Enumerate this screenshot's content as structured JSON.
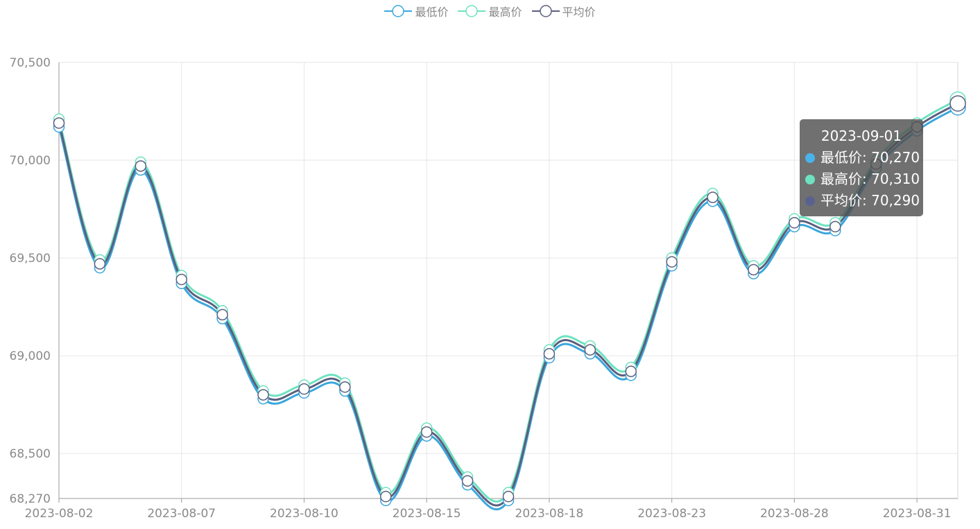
{
  "legend": [
    {
      "name": "最低价",
      "color": "#3aa6dc"
    },
    {
      "name": "最高价",
      "color": "#6de2c0"
    },
    {
      "name": "平均价",
      "color": "#5b5f7e"
    }
  ],
  "tooltip": {
    "date": "2023-09-01",
    "rows": [
      {
        "label": "最低价: 70,270",
        "color": "#4ab3ea"
      },
      {
        "label": "最高价: 70,310",
        "color": "#6de2c0"
      },
      {
        "label": "平均价: 70,290",
        "color": "#59628f"
      }
    ]
  },
  "chart_data": {
    "type": "line",
    "smooth": true,
    "grid": true,
    "legend_position": "top-center",
    "x": [
      "2023-08-02",
      "2023-08-03",
      "2023-08-04",
      "2023-08-07",
      "2023-08-08",
      "2023-08-09",
      "2023-08-10",
      "2023-08-11",
      "2023-08-14",
      "2023-08-15",
      "2023-08-16",
      "2023-08-17",
      "2023-08-18",
      "2023-08-21",
      "2023-08-22",
      "2023-08-23",
      "2023-08-24",
      "2023-08-25",
      "2023-08-28",
      "2023-08-29",
      "2023-08-30",
      "2023-08-31",
      "2023-09-01"
    ],
    "x_tick_labels": [
      "2023-08-02",
      "2023-08-07",
      "2023-08-10",
      "2023-08-15",
      "2023-08-18",
      "2023-08-23",
      "2023-08-28",
      "2023-08-31"
    ],
    "x_tick_indices": [
      0,
      3,
      6,
      9,
      12,
      15,
      18,
      21
    ],
    "ylim": [
      68270,
      70500
    ],
    "y_ticks": [
      68270,
      68500,
      69000,
      69500,
      70000,
      70500
    ],
    "y_tick_labels": [
      "68,270",
      "68,500",
      "69,000",
      "69,500",
      "70,000",
      "70,500"
    ],
    "series": [
      {
        "name": "最低价",
        "color": "#3aa6dc",
        "values": [
          70170,
          69450,
          69950,
          69370,
          69190,
          68780,
          68810,
          68820,
          68260,
          68590,
          68340,
          68260,
          68990,
          69010,
          68900,
          69460,
          69790,
          69420,
          69660,
          69640,
          69960,
          70150,
          70270
        ]
      },
      {
        "name": "最高价",
        "color": "#6de2c0",
        "values": [
          70210,
          69490,
          69990,
          69410,
          69230,
          68820,
          68850,
          68860,
          68300,
          68630,
          68380,
          68300,
          69030,
          69050,
          68940,
          69500,
          69830,
          69460,
          69700,
          69680,
          70000,
          70190,
          70310
        ]
      },
      {
        "name": "平均价",
        "color": "#5b5f7e",
        "values": [
          70190,
          69470,
          69970,
          69390,
          69210,
          68800,
          68830,
          68840,
          68280,
          68610,
          68360,
          68280,
          69010,
          69030,
          68920,
          69480,
          69810,
          69440,
          69680,
          69660,
          69980,
          70170,
          70290
        ]
      }
    ],
    "highlight_index": 22
  }
}
